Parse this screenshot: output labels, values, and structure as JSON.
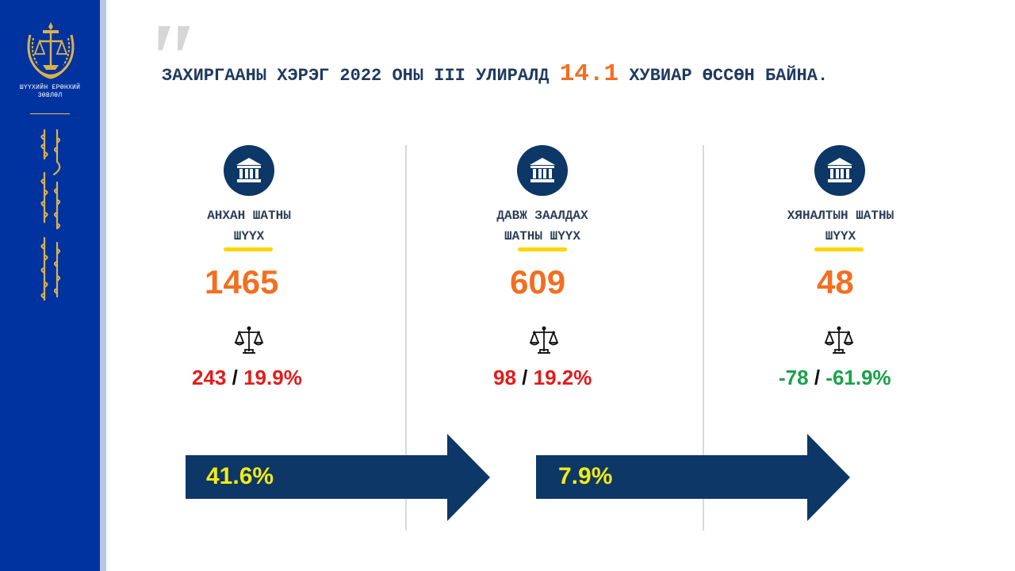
{
  "sidebar": {
    "org_line1": "ШҮҮХИЙН ЕРӨНХИЙ",
    "org_line2": "ЗӨВЛӨЛ"
  },
  "title": {
    "before": "ЗАХИРГААНЫ ХЭРЭГ 2022 ОНЫ III УЛИРАЛД",
    "highlight": "14.1",
    "after": "ХУВИАР ӨССӨН БАЙНА."
  },
  "courts": [
    {
      "name_line1": "АНХАН ШАТНЫ",
      "name_line2": "ШҮҮХ",
      "count": "1465",
      "change_abs": "243",
      "separator": "/",
      "change_pct": "19.9%",
      "change_color": "#e31b1b"
    },
    {
      "name_line1": "ДАВЖ ЗААЛДАХ",
      "name_line2": "ШАТНЫ ШҮҮХ",
      "count": "609",
      "change_abs": "98",
      "separator": "/",
      "change_pct": "19.2%",
      "change_color": "#e31b1b"
    },
    {
      "name_line1": "ХЯНАЛТЫН ШАТНЫ",
      "name_line2": "ШҮҮХ",
      "count": "48",
      "change_abs": "-78",
      "separator": "/",
      "change_pct": "-61.9%",
      "change_color": "#1aa14b"
    }
  ],
  "arrows": [
    {
      "label": "41.6%"
    },
    {
      "label": "7.9%"
    }
  ],
  "colors": {
    "sidebar": "#0033a0",
    "navy": "#0c3766",
    "orange": "#f26f21",
    "yellow": "#ffd500",
    "red": "#e31b1b",
    "green": "#1aa14b"
  },
  "icons": [
    "court-building-icon",
    "scales-of-justice-icon",
    "arrow-right-icon",
    "state-emblem-icon"
  ]
}
